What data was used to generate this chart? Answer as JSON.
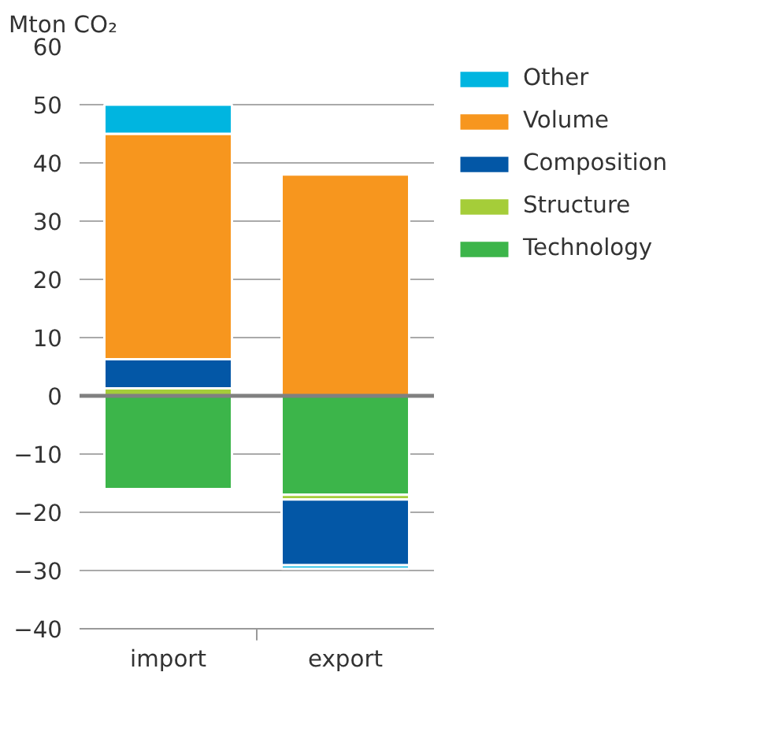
{
  "chart_data": {
    "type": "bar",
    "stacked": true,
    "ylabel": "Mton CO₂",
    "categories": [
      "import",
      "export"
    ],
    "series": [
      {
        "name": "Technology",
        "color": "#3cb54a",
        "values": [
          -16,
          -17
        ]
      },
      {
        "name": "Structure",
        "color": "#a5cd39",
        "values": [
          1.3,
          -0.8
        ]
      },
      {
        "name": "Composition",
        "color": "#0357a6",
        "values": [
          5,
          -11.3
        ]
      },
      {
        "name": "Volume",
        "color": "#f7961e",
        "values": [
          38.7,
          38
        ]
      },
      {
        "name": "Other",
        "color": "#00b5e0",
        "values": [
          5,
          -0.6
        ]
      }
    ],
    "ylim": [
      -40,
      60
    ],
    "yticks": [
      -40,
      -30,
      -20,
      -10,
      0,
      10,
      20,
      30,
      40,
      50,
      60
    ],
    "grid": "y",
    "legend": "top right"
  }
}
